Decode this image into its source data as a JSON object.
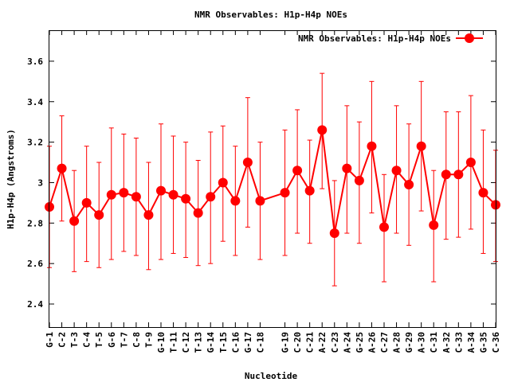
{
  "chart_data": {
    "type": "line",
    "title": "NMR Observables: H1p-H4p NOEs",
    "xlabel": "Nucleotide",
    "ylabel": "H1p-H4p (Angstroms)",
    "ylim": [
      2.286,
      3.753
    ],
    "yticks": [
      "2.4",
      "2.6",
      "2.8",
      "3",
      "3.2",
      "3.4",
      "3.6"
    ],
    "ytick_values": [
      2.4,
      2.6,
      2.8,
      3.0,
      3.2,
      3.4,
      3.6
    ],
    "xlim": [
      1,
      37
    ],
    "legend": {
      "label": "NMR Observables: H1p-H4p NOEs",
      "position": "top-right"
    },
    "grid": false,
    "series_color": "#ff0000",
    "categories": [
      "G-1",
      "C-2",
      "T-3",
      "C-4",
      "T-5",
      "G-6",
      "T-7",
      "C-8",
      "T-9",
      "G-10",
      "T-11",
      "C-12",
      "T-13",
      "G-14",
      "T-15",
      "C-16",
      "G-17",
      "C-18",
      "G-19",
      "C-20",
      "C-21",
      "A-22",
      "C-23",
      "A-24",
      "G-25",
      "A-26",
      "C-27",
      "A-28",
      "G-29",
      "A-30",
      "C-31",
      "A-32",
      "C-33",
      "A-34",
      "G-35",
      "C-36"
    ],
    "x": [
      1,
      2,
      3,
      4,
      5,
      6,
      7,
      8,
      9,
      10,
      11,
      12,
      13,
      14,
      15,
      16,
      17,
      18,
      20,
      21,
      22,
      23,
      24,
      25,
      26,
      27,
      28,
      29,
      30,
      31,
      32,
      33,
      34,
      35,
      36,
      37
    ],
    "values": [
      2.88,
      3.07,
      2.81,
      2.9,
      2.84,
      2.94,
      2.95,
      2.93,
      2.84,
      2.96,
      2.94,
      2.92,
      2.85,
      2.93,
      3.0,
      2.91,
      3.1,
      2.91,
      2.95,
      3.06,
      2.96,
      3.26,
      2.75,
      3.07,
      3.01,
      3.18,
      2.78,
      3.06,
      2.99,
      3.18,
      2.79,
      3.04,
      3.04,
      3.1,
      2.95,
      2.89
    ],
    "err_low": [
      2.58,
      2.81,
      2.56,
      2.61,
      2.58,
      2.62,
      2.66,
      2.64,
      2.57,
      2.62,
      2.65,
      2.63,
      2.59,
      2.6,
      2.71,
      2.64,
      2.78,
      2.62,
      2.64,
      2.75,
      2.7,
      2.97,
      2.49,
      2.75,
      2.7,
      2.85,
      2.51,
      2.75,
      2.69,
      2.86,
      2.51,
      2.72,
      2.73,
      2.77,
      2.65,
      2.61
    ],
    "err_high": [
      3.18,
      3.33,
      3.06,
      3.18,
      3.1,
      3.27,
      3.24,
      3.22,
      3.1,
      3.29,
      3.23,
      3.2,
      3.11,
      3.25,
      3.28,
      3.18,
      3.42,
      3.2,
      3.26,
      3.36,
      3.21,
      3.54,
      3.01,
      3.38,
      3.3,
      3.5,
      3.04,
      3.38,
      3.29,
      3.5,
      3.06,
      3.35,
      3.35,
      3.43,
      3.26,
      3.16
    ]
  }
}
